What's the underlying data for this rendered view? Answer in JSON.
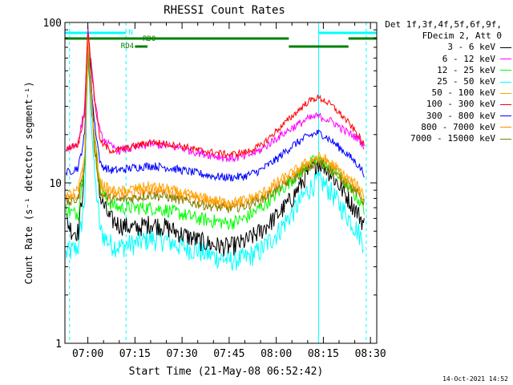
{
  "chart_data": {
    "type": "line",
    "title": "RHESSI Count Rates",
    "ylabel": "Count Rate (s⁻¹ detector segment⁻¹)",
    "xlabel": "Start Time (21-May-08 06:52:42)",
    "y_scale": "log",
    "ylim": [
      1,
      100
    ],
    "y_ticks": [
      "1",
      "10",
      "100"
    ],
    "xlim": [
      "06:52:42",
      "08:32:00"
    ],
    "x_ticks": [
      "07:00",
      "07:15",
      "07:30",
      "07:45",
      "08:00",
      "08:15",
      "08:30"
    ],
    "x": [
      "06:53",
      "06:55",
      "06:57",
      "06:59",
      "07:00",
      "07:02",
      "07:04",
      "07:07",
      "07:10",
      "07:15",
      "07:20",
      "07:25",
      "07:30",
      "07:35",
      "07:40",
      "07:45",
      "07:50",
      "07:55",
      "08:00",
      "08:05",
      "08:10",
      "08:13",
      "08:15",
      "08:18",
      "08:22",
      "08:26",
      "08:28"
    ],
    "series": [
      {
        "name": "3 - 6 keV",
        "color": "#000000",
        "values": [
          6,
          5,
          5,
          12,
          100,
          20,
          8,
          6,
          5.5,
          5.2,
          5.6,
          5.3,
          4.8,
          4.4,
          4.1,
          4,
          4.3,
          5,
          6.2,
          8,
          11.5,
          13.5,
          13,
          11,
          8.5,
          6.5,
          5.5
        ]
      },
      {
        "name": "6 - 12 keV",
        "color": "#ff00ff",
        "values": [
          16,
          17,
          18,
          30,
          90,
          35,
          20,
          17,
          16,
          16.5,
          17.5,
          17,
          16.5,
          15.5,
          14.8,
          14.2,
          14.6,
          16,
          19,
          22,
          25,
          26,
          25.5,
          24,
          21,
          19,
          17
        ]
      },
      {
        "name": "12 - 25 keV",
        "color": "#00ff00",
        "values": [
          7,
          6.5,
          6.5,
          14,
          85,
          20,
          9,
          7.5,
          7,
          7,
          7,
          6.8,
          6.4,
          6,
          5.8,
          5.6,
          6,
          7,
          8.5,
          10.5,
          13,
          14,
          13.5,
          12,
          10,
          8,
          7
        ]
      },
      {
        "name": "25 - 50 keV",
        "color": "#00ffff",
        "values": [
          3.6,
          3.8,
          4,
          8,
          60,
          12,
          5,
          4.2,
          4,
          4.2,
          4.5,
          4.4,
          4,
          3.8,
          3.5,
          3.3,
          3.4,
          3.8,
          4.8,
          6.5,
          9,
          10.3,
          10,
          8.5,
          6.5,
          5,
          4.2
        ]
      },
      {
        "name": "50 - 100 keV",
        "color": "#ffa500",
        "values": [
          8.5,
          8.5,
          9,
          15,
          80,
          20,
          10,
          9,
          8.8,
          9.2,
          9.5,
          9.2,
          8.6,
          8.2,
          7.8,
          7.5,
          7.8,
          8.5,
          10,
          11.5,
          13.5,
          14.5,
          14.2,
          13,
          11,
          9.5,
          8.5
        ]
      },
      {
        "name": "100 - 300 keV",
        "color": "#ff0000",
        "values": [
          16,
          17,
          17.5,
          28,
          90,
          35,
          18,
          16,
          16,
          17,
          18,
          17.5,
          17,
          16,
          15.5,
          15,
          15.5,
          17,
          21,
          26,
          32,
          34,
          33,
          30,
          25,
          20,
          17
        ]
      },
      {
        "name": "300 - 800 keV",
        "color": "#0000ff",
        "values": [
          11.5,
          12,
          12.5,
          20,
          75,
          25,
          13,
          12,
          12,
          12.5,
          12.8,
          12.5,
          12,
          11.5,
          11,
          10.8,
          11,
          12,
          14,
          17,
          19.5,
          20.5,
          20,
          18,
          15.5,
          13,
          11.5
        ]
      },
      {
        "name": "800 - 7000 keV",
        "color": "#ff8c00",
        "values": [
          8,
          8.2,
          8.5,
          14,
          70,
          18,
          9,
          8.5,
          8.3,
          8.7,
          9,
          8.8,
          8.3,
          7.9,
          7.5,
          7.3,
          7.6,
          8.2,
          9.5,
          11,
          13,
          14,
          13.8,
          12.5,
          10.5,
          9,
          8
        ]
      },
      {
        "name": "7000 - 15000 keV",
        "color": "#808000",
        "values": [
          7.5,
          7.6,
          8,
          13,
          65,
          17,
          8.5,
          8,
          7.8,
          8.1,
          8.4,
          8.2,
          7.8,
          7.4,
          7.1,
          6.9,
          7.2,
          7.8,
          9,
          10.5,
          12.3,
          13.2,
          13,
          11.8,
          10,
          8.5,
          7.5
        ]
      }
    ],
    "annotations": [
      "N",
      "RD0",
      "RD4"
    ],
    "legend_header": [
      "Det 1f,3f,4f,5f,6f,9f,",
      "FDecim 2, Att 0"
    ],
    "legend_position": "right"
  },
  "timestamp": "14-Oct-2021 14:52"
}
